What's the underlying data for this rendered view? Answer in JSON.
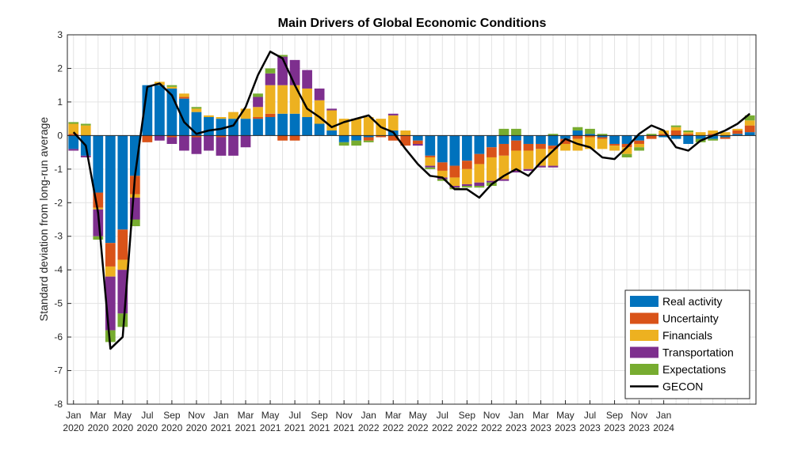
{
  "chart_data": {
    "type": "bar",
    "title": "Main Drivers of Global Economic Conditions",
    "ylabel": "Standard deviation from long-run average",
    "ylim": [
      -8,
      3
    ],
    "yticks": [
      -8,
      -7,
      -6,
      -5,
      -4,
      -3,
      -2,
      -1,
      0,
      1,
      2,
      3
    ],
    "grid": true,
    "legend_position": "bottom-right",
    "x_tick_labels": [
      [
        "Jan",
        "2020"
      ],
      [
        "Mar",
        "2020"
      ],
      [
        "May",
        "2020"
      ],
      [
        "Jul",
        "2020"
      ],
      [
        "Sep",
        "2020"
      ],
      [
        "Nov",
        "2020"
      ],
      [
        "Jan",
        "2021"
      ],
      [
        "Mar",
        "2021"
      ],
      [
        "May",
        "2021"
      ],
      [
        "Jul",
        "2021"
      ],
      [
        "Sep",
        "2021"
      ],
      [
        "Nov",
        "2021"
      ],
      [
        "Jan",
        "2022"
      ],
      [
        "Mar",
        "2022"
      ],
      [
        "May",
        "2022"
      ],
      [
        "Jul",
        "2022"
      ],
      [
        "Sep",
        "2022"
      ],
      [
        "Nov",
        "2022"
      ],
      [
        "Jan",
        "2023"
      ],
      [
        "Mar",
        "2023"
      ],
      [
        "May",
        "2023"
      ],
      [
        "Jul",
        "2023"
      ],
      [
        "Sep",
        "2023"
      ],
      [
        "Nov",
        "2023"
      ],
      [
        "Jan",
        "2024"
      ]
    ],
    "series": [
      {
        "name": "Real activity",
        "color": "#0072BD",
        "values": [
          -0.4,
          -0.6,
          -1.7,
          -3.2,
          -2.8,
          -1.2,
          1.5,
          1.5,
          1.4,
          1.1,
          0.7,
          0.55,
          0.5,
          0.5,
          0.5,
          0.5,
          0.55,
          0.65,
          0.65,
          0.55,
          0.35,
          0.15,
          -0.2,
          -0.15,
          -0.05,
          0.0,
          0.15,
          0.0,
          -0.15,
          -0.6,
          -0.8,
          -0.9,
          -0.75,
          -0.55,
          -0.35,
          -0.25,
          -0.15,
          -0.25,
          -0.25,
          -0.3,
          -0.1,
          0.15,
          0.05,
          -0.05,
          -0.25,
          -0.25,
          -0.15,
          0.0,
          -0.05,
          -0.1,
          -0.25,
          -0.1,
          -0.1,
          -0.05,
          0.05,
          0.1
        ]
      },
      {
        "name": "Uncertainty",
        "color": "#D95319",
        "values": [
          0.05,
          0.0,
          -0.45,
          -0.7,
          -0.9,
          -0.55,
          -0.2,
          0.0,
          -0.05,
          0.05,
          -0.05,
          0.0,
          -0.05,
          0.0,
          0.0,
          0.05,
          0.1,
          -0.15,
          -0.15,
          0.0,
          0.0,
          0.0,
          0.0,
          0.0,
          -0.1,
          -0.05,
          -0.15,
          -0.3,
          -0.1,
          -0.05,
          -0.25,
          -0.35,
          -0.25,
          -0.3,
          -0.3,
          -0.35,
          -0.3,
          -0.2,
          -0.15,
          -0.1,
          -0.15,
          -0.1,
          -0.05,
          -0.05,
          -0.05,
          -0.1,
          -0.1,
          -0.1,
          0.05,
          0.15,
          0.05,
          0.0,
          0.05,
          -0.05,
          0.1,
          0.2
        ]
      },
      {
        "name": "Financials",
        "color": "#EDB120",
        "values": [
          0.3,
          0.3,
          -0.05,
          -0.3,
          -0.3,
          -0.1,
          0.0,
          0.1,
          0.05,
          0.1,
          0.1,
          0.05,
          0.05,
          0.2,
          0.3,
          0.3,
          0.85,
          0.85,
          0.85,
          0.85,
          0.7,
          0.6,
          0.5,
          0.5,
          0.55,
          0.5,
          0.45,
          0.15,
          0.0,
          -0.25,
          -0.2,
          -0.25,
          -0.45,
          -0.55,
          -0.7,
          -0.7,
          -0.6,
          -0.55,
          -0.5,
          -0.5,
          -0.2,
          -0.35,
          -0.35,
          -0.3,
          -0.15,
          -0.2,
          -0.1,
          0.0,
          0.1,
          0.1,
          0.05,
          0.1,
          0.1,
          0.1,
          0.05,
          0.15
        ]
      },
      {
        "name": "Transportation",
        "color": "#7E2F8E",
        "values": [
          -0.05,
          -0.05,
          -0.8,
          -1.6,
          -1.3,
          -0.65,
          0.0,
          -0.15,
          -0.2,
          -0.45,
          -0.5,
          -0.45,
          -0.55,
          -0.6,
          -0.35,
          0.3,
          0.35,
          0.85,
          0.75,
          0.55,
          0.35,
          0.05,
          0.0,
          0.0,
          0.0,
          0.0,
          0.05,
          0.0,
          -0.05,
          -0.05,
          -0.05,
          -0.05,
          -0.05,
          -0.1,
          -0.05,
          -0.05,
          -0.05,
          -0.05,
          -0.05,
          -0.05,
          0.0,
          0.0,
          0.0,
          0.0,
          0.0,
          0.0,
          0.0,
          0.0,
          0.0,
          0.0,
          0.0,
          0.0,
          0.0,
          0.0,
          0.0,
          0.0
        ]
      },
      {
        "name": "Expectations",
        "color": "#77AC30",
        "values": [
          0.05,
          0.05,
          -0.1,
          -0.35,
          -0.4,
          -0.2,
          0.0,
          0.0,
          0.05,
          0.0,
          0.05,
          0.0,
          0.0,
          0.0,
          0.0,
          0.1,
          0.15,
          0.05,
          0.0,
          0.0,
          0.0,
          0.0,
          -0.1,
          -0.15,
          -0.05,
          0.0,
          0.0,
          0.0,
          0.0,
          -0.05,
          -0.05,
          -0.05,
          -0.05,
          -0.05,
          -0.1,
          0.2,
          0.2,
          0.0,
          0.0,
          0.05,
          0.0,
          0.1,
          0.15,
          0.05,
          0.0,
          -0.1,
          -0.1,
          0.05,
          0.0,
          0.05,
          0.05,
          -0.1,
          -0.05,
          0.0,
          0.0,
          0.15
        ]
      },
      {
        "name": "GECON",
        "color": "#000000",
        "type": "line",
        "values": [
          0.1,
          -0.3,
          -2.3,
          -6.35,
          -6.0,
          -1.2,
          1.45,
          1.55,
          1.2,
          0.4,
          0.05,
          0.15,
          0.2,
          0.3,
          0.85,
          1.8,
          2.5,
          2.3,
          1.5,
          0.8,
          0.55,
          0.25,
          0.4,
          0.5,
          0.6,
          0.25,
          0.1,
          -0.4,
          -0.85,
          -1.2,
          -1.25,
          -1.6,
          -1.6,
          -1.85,
          -1.45,
          -1.2,
          -1.0,
          -1.2,
          -0.8,
          -0.45,
          -0.1,
          -0.25,
          -0.35,
          -0.65,
          -0.7,
          -0.35,
          0.05,
          0.3,
          0.15,
          -0.35,
          -0.45,
          -0.15,
          0.0,
          0.15,
          0.35,
          0.65
        ]
      }
    ]
  }
}
